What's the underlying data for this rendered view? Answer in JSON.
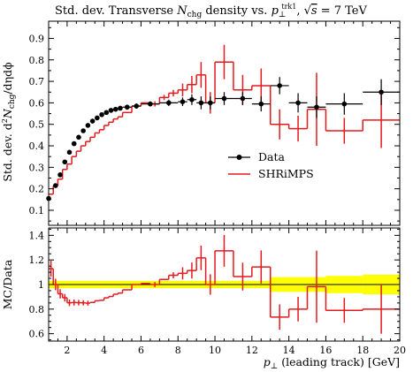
{
  "chart_data": {
    "type": "line",
    "title": "Std. dev. Transverse N_chg density vs. p_⊥^trk1, √s = 7 TeV",
    "title_parts": {
      "prefix": "Std. dev. Transverse ",
      "n": "N",
      "n_sub": "chg",
      "middle": " density vs. ",
      "p": "p",
      "p_sub": "⊥",
      "p_sup": "trk1",
      "sep": ", ",
      "sqrt": "√",
      "s": "s",
      "energy": " = 7 TeV"
    },
    "ylabel": "Std. dev. d²N_chg/dηdϕ",
    "ylabel_parts": {
      "prefix": "Std. dev. d",
      "sup2": "2",
      "n": "N",
      "n_sub": "chg",
      "suffix": "/dηdϕ"
    },
    "ratio_ylabel": "MC/Data",
    "xlabel": "p⊥ (leading track) [GeV]",
    "xlabel_parts": {
      "p": "p",
      "p_sub": "⊥",
      "rest": " (leading track) [GeV]"
    },
    "xlim": [
      1,
      20
    ],
    "ylim": [
      0.03,
      0.98
    ],
    "ratio_ylim": [
      0.54,
      1.46
    ],
    "x_ticks": [
      "2",
      "4",
      "6",
      "8",
      "10",
      "12",
      "14",
      "16",
      "18",
      "20"
    ],
    "y_ticks": [
      "0.1",
      "0.2",
      "0.3",
      "0.4",
      "0.5",
      "0.6",
      "0.7",
      "0.8",
      "0.9"
    ],
    "ratio_y_ticks": [
      "0.6",
      "0.8",
      "1",
      "1.2",
      "1.4"
    ],
    "legend": {
      "placement": "center-right",
      "entries": [
        {
          "label": "Data",
          "color": "#000000",
          "style": "marker"
        },
        {
          "label": "SHRiMPS",
          "color": "#e41a1c",
          "style": "line"
        }
      ]
    },
    "colors": {
      "data": "#000000",
      "mc": "#e41a1c",
      "band": "#ffff00"
    },
    "data_points": [
      {
        "x": 1.0,
        "xlow": 1.0,
        "xhigh": 1.25,
        "y": 0.155,
        "err": 0.01
      },
      {
        "x": 1.375,
        "xlow": 1.25,
        "xhigh": 1.5,
        "y": 0.215,
        "err": 0.01
      },
      {
        "x": 1.625,
        "xlow": 1.5,
        "xhigh": 1.75,
        "y": 0.265,
        "err": 0.008
      },
      {
        "x": 1.875,
        "xlow": 1.75,
        "xhigh": 2.0,
        "y": 0.325,
        "err": 0.008
      },
      {
        "x": 2.125,
        "xlow": 2.0,
        "xhigh": 2.25,
        "y": 0.37,
        "err": 0.008
      },
      {
        "x": 2.375,
        "xlow": 2.25,
        "xhigh": 2.5,
        "y": 0.41,
        "err": 0.008
      },
      {
        "x": 2.625,
        "xlow": 2.5,
        "xhigh": 2.75,
        "y": 0.44,
        "err": 0.008
      },
      {
        "x": 2.875,
        "xlow": 2.75,
        "xhigh": 3.0,
        "y": 0.47,
        "err": 0.008
      },
      {
        "x": 3.125,
        "xlow": 3.0,
        "xhigh": 3.25,
        "y": 0.495,
        "err": 0.008
      },
      {
        "x": 3.375,
        "xlow": 3.25,
        "xhigh": 3.5,
        "y": 0.515,
        "err": 0.008
      },
      {
        "x": 3.625,
        "xlow": 3.5,
        "xhigh": 3.75,
        "y": 0.53,
        "err": 0.008
      },
      {
        "x": 3.875,
        "xlow": 3.75,
        "xhigh": 4.0,
        "y": 0.545,
        "err": 0.008
      },
      {
        "x": 4.125,
        "xlow": 4.0,
        "xhigh": 4.25,
        "y": 0.555,
        "err": 0.008
      },
      {
        "x": 4.375,
        "xlow": 4.25,
        "xhigh": 4.5,
        "y": 0.565,
        "err": 0.008
      },
      {
        "x": 4.625,
        "xlow": 4.5,
        "xhigh": 4.75,
        "y": 0.57,
        "err": 0.01
      },
      {
        "x": 4.875,
        "xlow": 4.75,
        "xhigh": 5.0,
        "y": 0.575,
        "err": 0.01
      },
      {
        "x": 5.25,
        "xlow": 5.0,
        "xhigh": 5.5,
        "y": 0.58,
        "err": 0.012
      },
      {
        "x": 5.75,
        "xlow": 5.5,
        "xhigh": 6.0,
        "y": 0.585,
        "err": 0.012
      },
      {
        "x": 6.5,
        "xlow": 6.0,
        "xhigh": 7.0,
        "y": 0.595,
        "err": 0.012
      },
      {
        "x": 7.5,
        "xlow": 7.0,
        "xhigh": 8.0,
        "y": 0.6,
        "err": 0.015
      },
      {
        "x": 8.25,
        "xlow": 8.0,
        "xhigh": 8.5,
        "y": 0.605,
        "err": 0.02
      },
      {
        "x": 8.75,
        "xlow": 8.5,
        "xhigh": 9.0,
        "y": 0.615,
        "err": 0.025
      },
      {
        "x": 9.25,
        "xlow": 9.0,
        "xhigh": 9.5,
        "y": 0.6,
        "err": 0.03
      },
      {
        "x": 9.75,
        "xlow": 9.5,
        "xhigh": 10.0,
        "y": 0.6,
        "err": 0.03
      },
      {
        "x": 10.5,
        "xlow": 10.0,
        "xhigh": 11.0,
        "y": 0.62,
        "err": 0.03
      },
      {
        "x": 11.5,
        "xlow": 11.0,
        "xhigh": 12.0,
        "y": 0.62,
        "err": 0.03
      },
      {
        "x": 12.5,
        "xlow": 12.0,
        "xhigh": 13.0,
        "y": 0.595,
        "err": 0.035
      },
      {
        "x": 13.5,
        "xlow": 13.0,
        "xhigh": 14.0,
        "y": 0.68,
        "err": 0.04
      },
      {
        "x": 14.5,
        "xlow": 14.0,
        "xhigh": 15.0,
        "y": 0.6,
        "err": 0.045
      },
      {
        "x": 15.5,
        "xlow": 15.0,
        "xhigh": 16.0,
        "y": 0.58,
        "err": 0.05
      },
      {
        "x": 17.0,
        "xlow": 16.0,
        "xhigh": 18.0,
        "y": 0.595,
        "err": 0.05
      },
      {
        "x": 19.0,
        "xlow": 18.0,
        "xhigh": 20.0,
        "y": 0.65,
        "err": 0.06
      }
    ],
    "mc_bins": [
      {
        "xlow": 1.0,
        "xhigh": 1.25,
        "y": 0.175,
        "err": 0.01
      },
      {
        "xlow": 1.25,
        "xhigh": 1.5,
        "y": 0.215,
        "err": 0.01
      },
      {
        "xlow": 1.5,
        "xhigh": 1.75,
        "y": 0.245,
        "err": 0.01
      },
      {
        "xlow": 1.75,
        "xhigh": 2.0,
        "y": 0.29,
        "err": 0.01
      },
      {
        "xlow": 2.0,
        "xhigh": 2.25,
        "y": 0.315,
        "err": 0.01
      },
      {
        "xlow": 2.25,
        "xhigh": 2.5,
        "y": 0.35,
        "err": 0.01
      },
      {
        "xlow": 2.5,
        "xhigh": 2.75,
        "y": 0.375,
        "err": 0.01
      },
      {
        "xlow": 2.75,
        "xhigh": 3.0,
        "y": 0.4,
        "err": 0.01
      },
      {
        "xlow": 3.0,
        "xhigh": 3.25,
        "y": 0.42,
        "err": 0.01
      },
      {
        "xlow": 3.25,
        "xhigh": 3.5,
        "y": 0.44,
        "err": 0.01
      },
      {
        "xlow": 3.5,
        "xhigh": 3.75,
        "y": 0.46,
        "err": 0.01
      },
      {
        "xlow": 3.75,
        "xhigh": 4.0,
        "y": 0.475,
        "err": 0.01
      },
      {
        "xlow": 4.0,
        "xhigh": 4.25,
        "y": 0.495,
        "err": 0.01
      },
      {
        "xlow": 4.25,
        "xhigh": 4.5,
        "y": 0.51,
        "err": 0.01
      },
      {
        "xlow": 4.5,
        "xhigh": 4.75,
        "y": 0.525,
        "err": 0.01
      },
      {
        "xlow": 4.75,
        "xhigh": 5.0,
        "y": 0.535,
        "err": 0.01
      },
      {
        "xlow": 5.0,
        "xhigh": 5.5,
        "y": 0.555,
        "err": 0.01
      },
      {
        "xlow": 5.5,
        "xhigh": 6.0,
        "y": 0.585,
        "err": 0.01
      },
      {
        "xlow": 6.0,
        "xhigh": 6.5,
        "y": 0.6,
        "err": 0.01
      },
      {
        "xlow": 6.5,
        "xhigh": 7.0,
        "y": 0.595,
        "err": 0.012
      },
      {
        "xlow": 7.0,
        "xhigh": 7.5,
        "y": 0.625,
        "err": 0.012
      },
      {
        "xlow": 7.5,
        "xhigh": 8.0,
        "y": 0.645,
        "err": 0.015
      },
      {
        "xlow": 8.0,
        "xhigh": 8.5,
        "y": 0.66,
        "err": 0.03
      },
      {
        "xlow": 8.5,
        "xhigh": 9.0,
        "y": 0.685,
        "err": 0.04
      },
      {
        "xlow": 9.0,
        "xhigh": 9.5,
        "y": 0.73,
        "err": 0.06
      },
      {
        "xlow": 9.5,
        "xhigh": 10.0,
        "y": 0.6,
        "err": 0.05
      },
      {
        "xlow": 10.0,
        "xhigh": 11.0,
        "y": 0.79,
        "err": 0.08
      },
      {
        "xlow": 11.0,
        "xhigh": 12.0,
        "y": 0.66,
        "err": 0.07
      },
      {
        "xlow": 12.0,
        "xhigh": 13.0,
        "y": 0.68,
        "err": 0.08
      },
      {
        "xlow": 13.0,
        "xhigh": 14.0,
        "y": 0.5,
        "err": 0.07
      },
      {
        "xlow": 14.0,
        "xhigh": 15.0,
        "y": 0.48,
        "err": 0.06
      },
      {
        "xlow": 15.0,
        "xhigh": 16.0,
        "y": 0.57,
        "err": 0.17
      },
      {
        "xlow": 16.0,
        "xhigh": 18.0,
        "y": 0.47,
        "err": 0.06
      },
      {
        "xlow": 18.0,
        "xhigh": 20.0,
        "y": 0.52,
        "err": 0.13
      }
    ],
    "ratio_band": [
      {
        "xlow": 1.0,
        "xhigh": 13.0,
        "low": 0.97,
        "high": 1.03
      },
      {
        "xlow": 13.0,
        "xhigh": 16.0,
        "low": 0.94,
        "high": 1.06
      },
      {
        "xlow": 16.0,
        "xhigh": 18.0,
        "low": 0.93,
        "high": 1.07
      },
      {
        "xlow": 18.0,
        "xhigh": 20.0,
        "low": 0.92,
        "high": 1.08
      }
    ]
  }
}
